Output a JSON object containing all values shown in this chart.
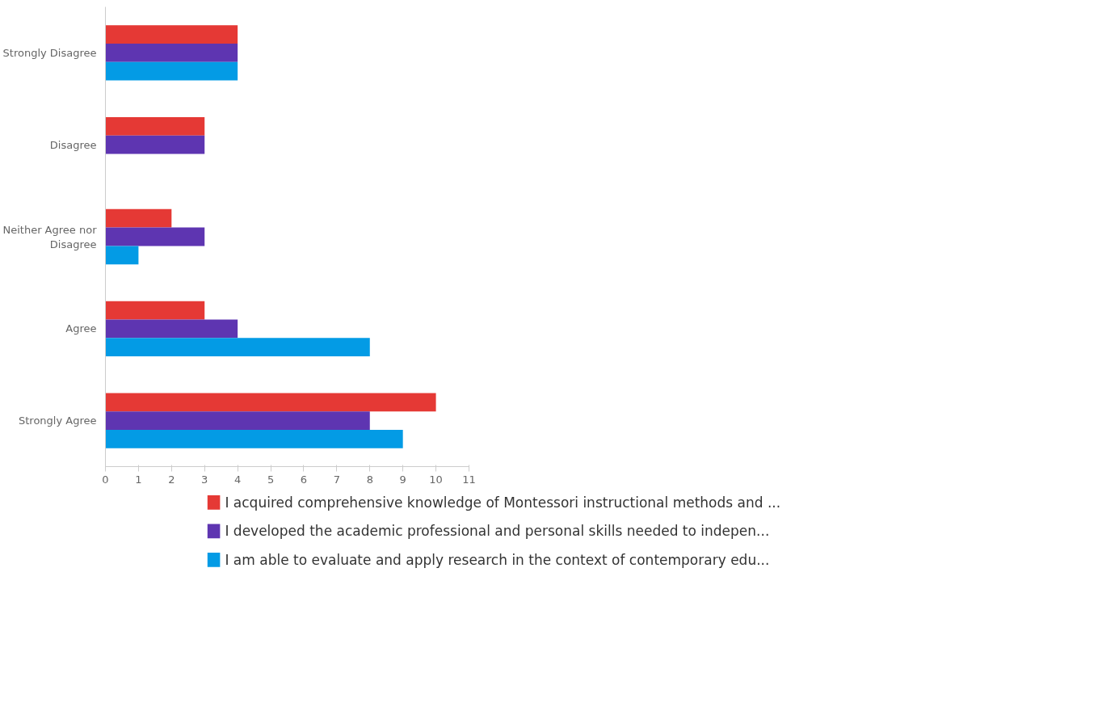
{
  "chart_data": {
    "type": "bar",
    "orientation": "horizontal",
    "categories": [
      "Strongly Disagree",
      "Disagree",
      "Neither Agree nor Disagree",
      "Agree",
      "Strongly Agree"
    ],
    "series": [
      {
        "name": "I acquired comprehensive knowledge of Montessori instructional methods and ...",
        "color": "#e53935",
        "values": [
          4,
          3,
          2,
          3,
          10
        ]
      },
      {
        "name": "I developed the academic professional and personal skills needed to indepen...",
        "color": "#5e35b1",
        "values": [
          4,
          3,
          3,
          4,
          8
        ]
      },
      {
        "name": "I am able to evaluate and apply research in the context of contemporary edu...",
        "color": "#039be5",
        "values": [
          4,
          0,
          1,
          8,
          9
        ]
      }
    ],
    "xlim": [
      0,
      11
    ],
    "xticks": [
      0,
      1,
      2,
      3,
      4,
      5,
      6,
      7,
      8,
      9,
      10,
      11
    ],
    "grid": false,
    "legend": "bottom"
  }
}
